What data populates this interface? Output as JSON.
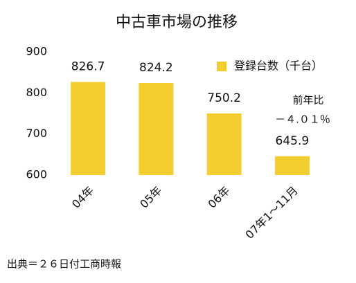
{
  "chart_data": {
    "type": "bar",
    "title": "中古車市場の推移",
    "categories": [
      "04年",
      "05年",
      "06年",
      "07年1～11月"
    ],
    "series": [
      {
        "name": "登録台数（千台）",
        "color": "#f2ce2e",
        "values": [
          826.7,
          824.2,
          750.2,
          645.9
        ]
      }
    ],
    "ylim": [
      600,
      900
    ],
    "yticks": [
      600,
      700,
      800,
      900
    ],
    "grid": false,
    "legend": "top-right",
    "annotations": [
      "前年比",
      "－４.０１％"
    ],
    "source": "出典＝２６日付工商時報"
  }
}
